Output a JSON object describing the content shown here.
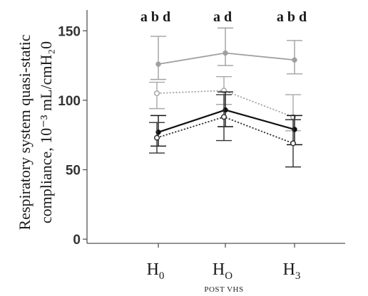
{
  "chart_data": {
    "type": "line",
    "categories": [
      "H0",
      "HO",
      "H3"
    ],
    "category_labels": [
      {
        "main": "H",
        "sub": "0"
      },
      {
        "main": "H",
        "sub": "O"
      },
      {
        "main": "H",
        "sub": "3"
      }
    ],
    "xlabel": "POST VHS",
    "ylabel_lines": [
      "Respiratory system quasi-static",
      "compliance, 10⁻³ mL/cmH₂0"
    ],
    "ylim": [
      -3,
      165
    ],
    "yticks": [
      0,
      50,
      100,
      150
    ],
    "annotations": [
      "a b d",
      "a d",
      "a b d"
    ],
    "grid": false,
    "series": [
      {
        "values": [
          126,
          134,
          129
        ],
        "err_low": [
          115,
          125,
          119
        ],
        "err_high": [
          146,
          152,
          143
        ],
        "color": "#a0a0a0",
        "line_style": "solid",
        "marker": "filled"
      },
      {
        "values": [
          105,
          107,
          88
        ],
        "err_low": [
          94,
          97,
          78
        ],
        "err_high": [
          113,
          117,
          104
        ],
        "color": "#a8a8a8",
        "line_style": "dotted",
        "marker": "open"
      },
      {
        "values": [
          77,
          93,
          79
        ],
        "err_low": [
          67,
          81,
          68
        ],
        "err_high": [
          89,
          106,
          89
        ],
        "color": "#111111",
        "line_style": "solid",
        "marker": "filled"
      },
      {
        "values": [
          73,
          88,
          69
        ],
        "err_low": [
          62,
          71,
          52
        ],
        "err_high": [
          84,
          104,
          86
        ],
        "color": "#333333",
        "line_style": "dotted",
        "marker": "open"
      }
    ]
  }
}
